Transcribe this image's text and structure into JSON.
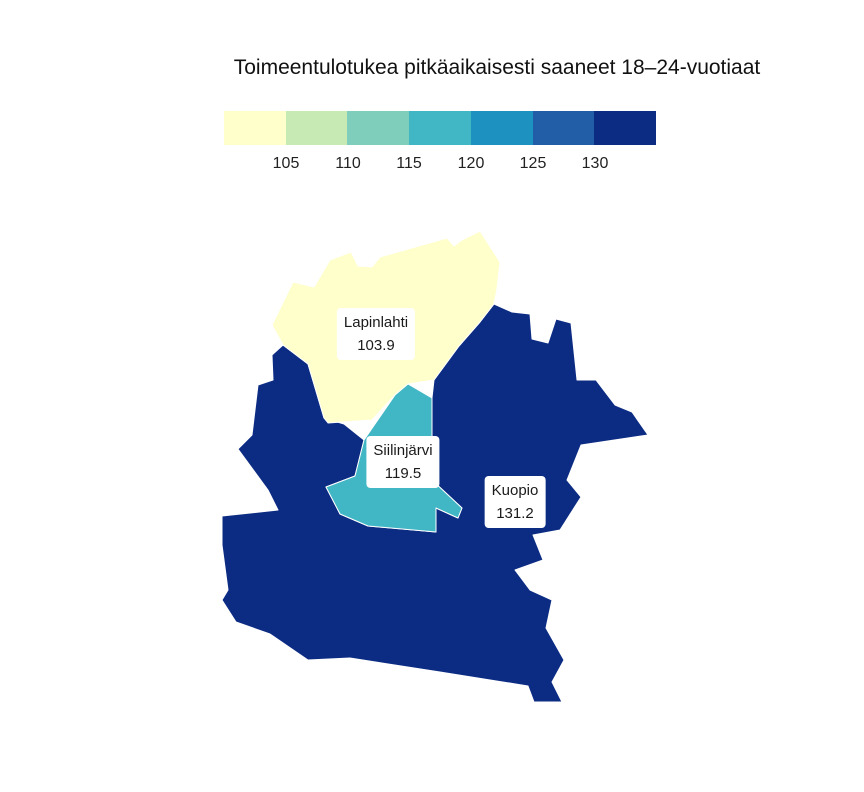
{
  "title": "Toimeentulotukea pitkäaikaisesti saaneet 18–24-vuotiaat",
  "legend": {
    "colors": [
      "#ffffcc",
      "#c7e9b4",
      "#7fcdbb",
      "#41b6c4",
      "#1d91c0",
      "#225ea8",
      "#0c2c84"
    ],
    "ticks": [
      "105",
      "110",
      "115",
      "120",
      "125",
      "130"
    ]
  },
  "regions": [
    {
      "name": "Kuopio",
      "value": "131.2",
      "color": "#0c2c84"
    },
    {
      "name": "Lapinlahti",
      "value": "103.9",
      "color": "#ffffcc"
    },
    {
      "name": "Siilinjärvi",
      "value": "119.5",
      "color": "#41b6c4"
    }
  ]
}
